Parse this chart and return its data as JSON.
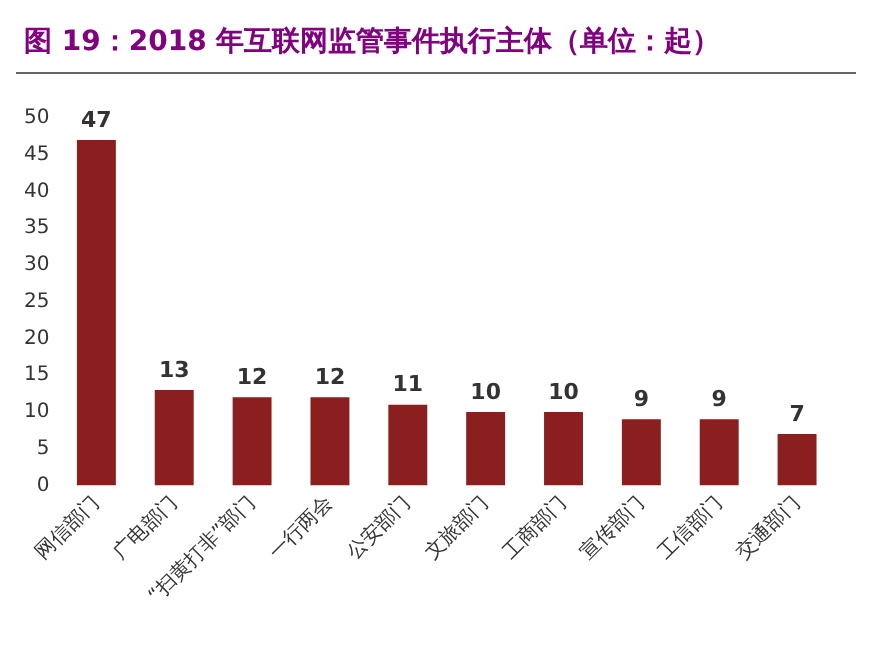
{
  "chart_data": {
    "type": "bar",
    "title": "图 19：2018 年互联网监管事件执行主体（单位：起）",
    "categories": [
      "网信部门",
      "广电部门",
      "“扫黄打非”部门",
      "一行两会",
      "公安部门",
      "文旅部门",
      "工商部门",
      "宣传部门",
      "工信部门",
      "交通部门"
    ],
    "values": [
      47,
      13,
      12,
      12,
      11,
      10,
      10,
      9,
      9,
      7
    ],
    "color": "#8b1e1e",
    "ylim": [
      0,
      50
    ],
    "yticks": [
      0,
      5,
      10,
      15,
      20,
      25,
      30,
      35,
      40,
      45,
      50
    ],
    "data_labels": true,
    "grid": false,
    "legend": false
  }
}
